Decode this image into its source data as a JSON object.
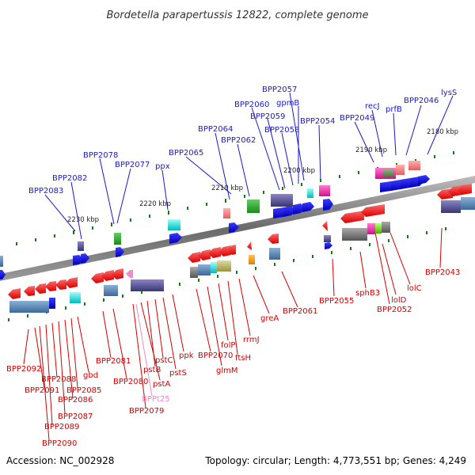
{
  "header": {
    "title": "Bordetella parapertussis 12822, complete genome"
  },
  "footer": {
    "accession": "Accession: NC_002928",
    "summary": "Topology: circular; Length: 4,773,551 bp; Genes: 4,249"
  },
  "scale_labels": [
    "2180 kbp",
    "2190 kbp",
    "2200 kbp",
    "2210 kbp",
    "2220 kbp",
    "2230 kbp"
  ],
  "top_strand_genes": [
    "lysS",
    "BPP2046",
    "prfB",
    "recJ",
    "BPP2049",
    "BPP2054",
    "BPP2057",
    "gpmB",
    "BPP2058",
    "BPP2059",
    "BPP2060",
    "BPP2062",
    "BPP2064",
    "BPP2065",
    "ppx",
    "BPP2077",
    "BPP2078",
    "BPP2082",
    "BPP2083"
  ],
  "bottom_strand_genes": [
    "BPP2043",
    "lolC",
    "lolD",
    "BPP2052",
    "sphB3",
    "BPP2055",
    "BPP2061",
    "greA",
    "rrmJ",
    "ftsH",
    "folP",
    "glmM",
    "BPP2070",
    "ppk",
    "pstS",
    "pstC",
    "pstB",
    "pstA",
    "BPP2079",
    "BPPt25",
    "BPP2080",
    "BPP2081",
    "gbd",
    "BPP2085",
    "BPP2086",
    "BPP2087",
    "BPP2088",
    "BPP2089",
    "BPP2090",
    "BPP2091",
    "BPP2092"
  ],
  "colors": {
    "forward": "#0000ee",
    "reverse": "#ff0000",
    "backbone": "#7f7f7f",
    "label_top": "#1a1ac8",
    "label_bottom": "#d40000",
    "rna": "#f08cc8"
  }
}
